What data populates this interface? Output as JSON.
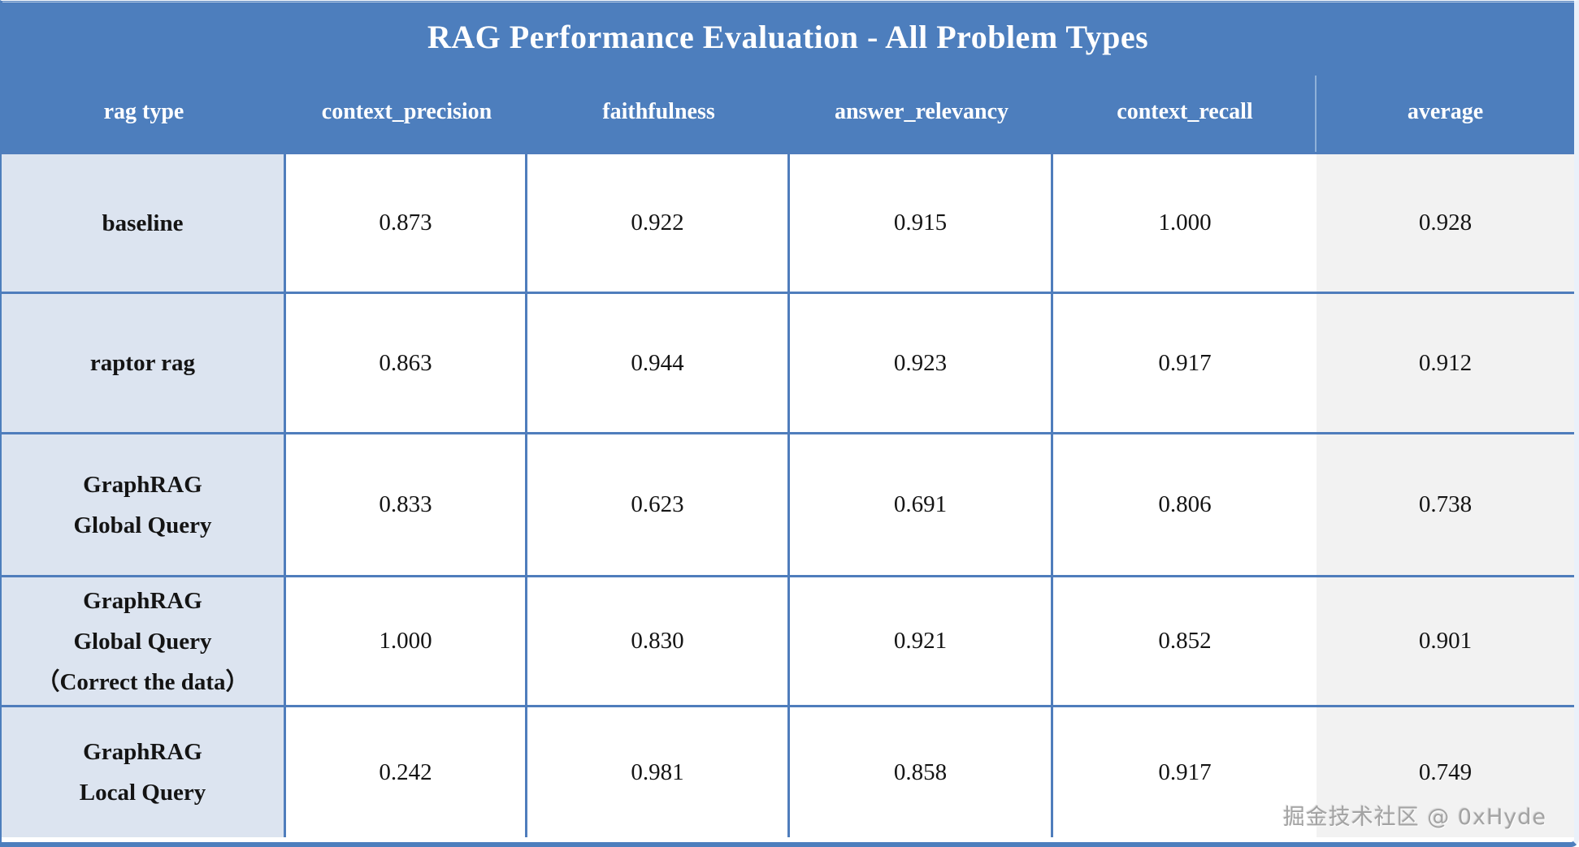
{
  "title": "RAG Performance Evaluation - All Problem Types",
  "columns": [
    "rag type",
    "context_precision",
    "faithfulness",
    "answer_relevancy",
    "context_recall",
    "average"
  ],
  "rows": [
    {
      "label_lines": [
        "baseline"
      ],
      "values": [
        "0.873",
        "0.922",
        "0.915",
        "1.000"
      ],
      "average": "0.928"
    },
    {
      "label_lines": [
        "raptor rag"
      ],
      "values": [
        "0.863",
        "0.944",
        "0.923",
        "0.917"
      ],
      "average": "0.912"
    },
    {
      "label_lines": [
        "GraphRAG",
        "Global Query"
      ],
      "values": [
        "0.833",
        "0.623",
        "0.691",
        "0.806"
      ],
      "average": "0.738"
    },
    {
      "label_lines": [
        "GraphRAG",
        "Global Query",
        "（Correct the data）"
      ],
      "values": [
        "1.000",
        "0.830",
        "0.921",
        "0.852"
      ],
      "average": "0.901"
    },
    {
      "label_lines": [
        "GraphRAG",
        "Local Query"
      ],
      "values": [
        "0.242",
        "0.981",
        "0.858",
        "0.917"
      ],
      "average": "0.749"
    }
  ],
  "watermark": "掘金技术社区 @ 0xHyde",
  "colors": {
    "header_blue": "#4d7ebd",
    "border_blue": "#4f7dbc",
    "row_label_bg": "#dce4f0",
    "average_bg": "#f2f2f2",
    "text": "#141414",
    "watermark_gray": "#a3a3a3"
  }
}
